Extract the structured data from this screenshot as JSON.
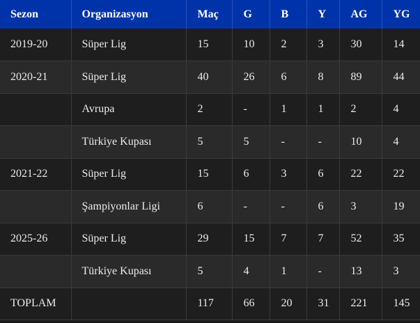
{
  "headers": [
    "Sezon",
    "Organizasyon",
    "Maç",
    "G",
    "B",
    "Y",
    "AG",
    "YG"
  ],
  "rows": [
    [
      "2019-20",
      "Süper Lig",
      "15",
      "10",
      "2",
      "3",
      "30",
      "14"
    ],
    [
      "2020-21",
      "Süper Lig",
      "40",
      "26",
      "6",
      "8",
      "89",
      "44"
    ],
    [
      "",
      "Avrupa",
      "2",
      "-",
      "1",
      "1",
      "2",
      "4"
    ],
    [
      "",
      "Türkiye Kupası",
      "5",
      "5",
      "-",
      "-",
      "10",
      "4"
    ],
    [
      "2021-22",
      "Süper Lig",
      "15",
      "6",
      "3",
      "6",
      "22",
      "22"
    ],
    [
      "",
      "Şampiyonlar Ligi",
      "6",
      "-",
      "-",
      "6",
      "3",
      "19"
    ],
    [
      "2025-26",
      "Süper Lig",
      "29",
      "15",
      "7",
      "7",
      "52",
      "35"
    ],
    [
      "",
      "Türkiye Kupası",
      "5",
      "4",
      "1",
      "-",
      "13",
      "3"
    ],
    [
      "TOPLAM",
      "",
      "117",
      "66",
      "20",
      "31",
      "221",
      "145"
    ]
  ],
  "colors": {
    "header": "#0033aa",
    "row_dark": "#1e1e1e",
    "row_light": "#2a2a2a"
  }
}
